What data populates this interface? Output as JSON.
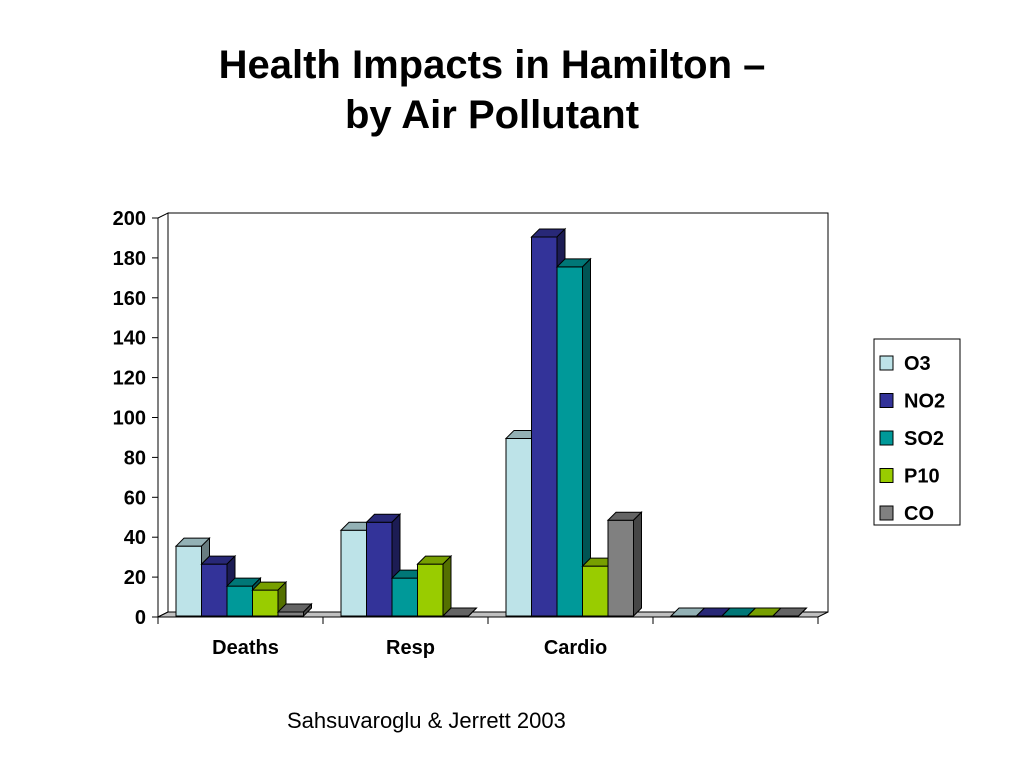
{
  "chart_data": {
    "type": "bar",
    "title": [
      "Health Impacts in Hamilton –",
      "by Air Pollutant"
    ],
    "categories": [
      "Deaths",
      "Resp",
      "Cardio",
      ""
    ],
    "series": [
      {
        "name": "O3",
        "color": "#bde3e8",
        "values": [
          35,
          43,
          89,
          0
        ]
      },
      {
        "name": "NO2",
        "color": "#333399",
        "values": [
          26,
          47,
          190,
          0
        ]
      },
      {
        "name": "SO2",
        "color": "#009999",
        "values": [
          15,
          19,
          175,
          0
        ]
      },
      {
        "name": "P10",
        "color": "#99cc00",
        "values": [
          13,
          26,
          25,
          0
        ]
      },
      {
        "name": "CO",
        "color": "#808080",
        "values": [
          2,
          0,
          48,
          0
        ]
      }
    ],
    "ylim": [
      0,
      200
    ],
    "yticks": [
      0,
      20,
      40,
      60,
      80,
      100,
      120,
      140,
      160,
      180,
      200
    ],
    "grid": true,
    "legend": "right",
    "xlabel": "",
    "ylabel": ""
  },
  "source": "Sahsuvaroglu & Jerrett 2003"
}
